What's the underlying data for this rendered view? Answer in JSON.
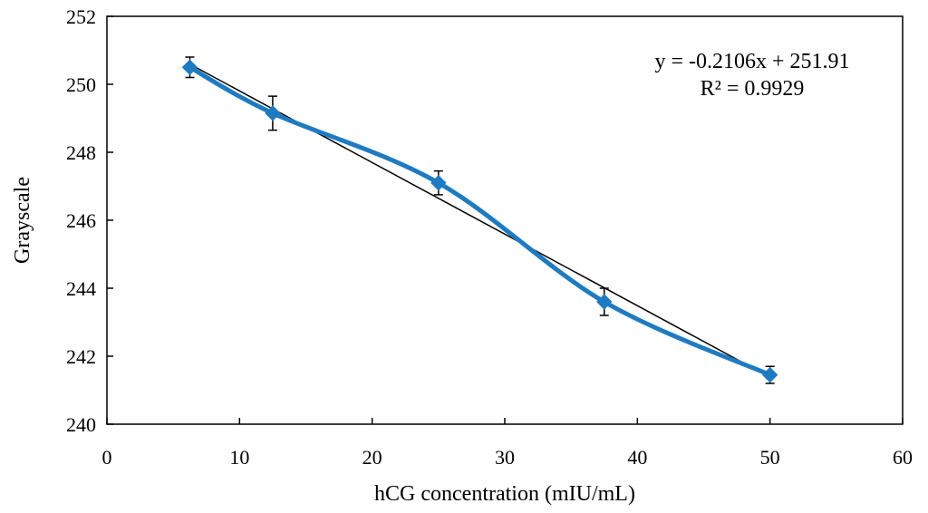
{
  "chart_data": {
    "type": "scatter",
    "title": "",
    "xlabel": "hCG concentration (mIU/mL)",
    "ylabel": "Grayscale",
    "xlim": [
      0,
      60
    ],
    "ylim": [
      240,
      252
    ],
    "xticks": [
      "0",
      "10",
      "20",
      "30",
      "40",
      "50",
      "60"
    ],
    "yticks": [
      "240",
      "242",
      "244",
      "246",
      "248",
      "250",
      "252"
    ],
    "grid": false,
    "legend": "none",
    "series": [
      {
        "name": "Grayscale",
        "x": [
          6.25,
          12.5,
          25,
          37.5,
          50
        ],
        "y": [
          250.5,
          249.15,
          247.1,
          243.6,
          241.45
        ],
        "error": [
          0.3,
          0.5,
          0.35,
          0.4,
          0.25
        ],
        "color": "#1f7bc1",
        "marker": "diamond",
        "line": "smooth"
      }
    ],
    "trendline": {
      "type": "linear",
      "slope": -0.2106,
      "intercept": 251.91,
      "color": "#000000"
    },
    "annotations": {
      "equation": "y = -0.2106x + 251.91",
      "r_squared": "R² = 0.9929"
    }
  }
}
